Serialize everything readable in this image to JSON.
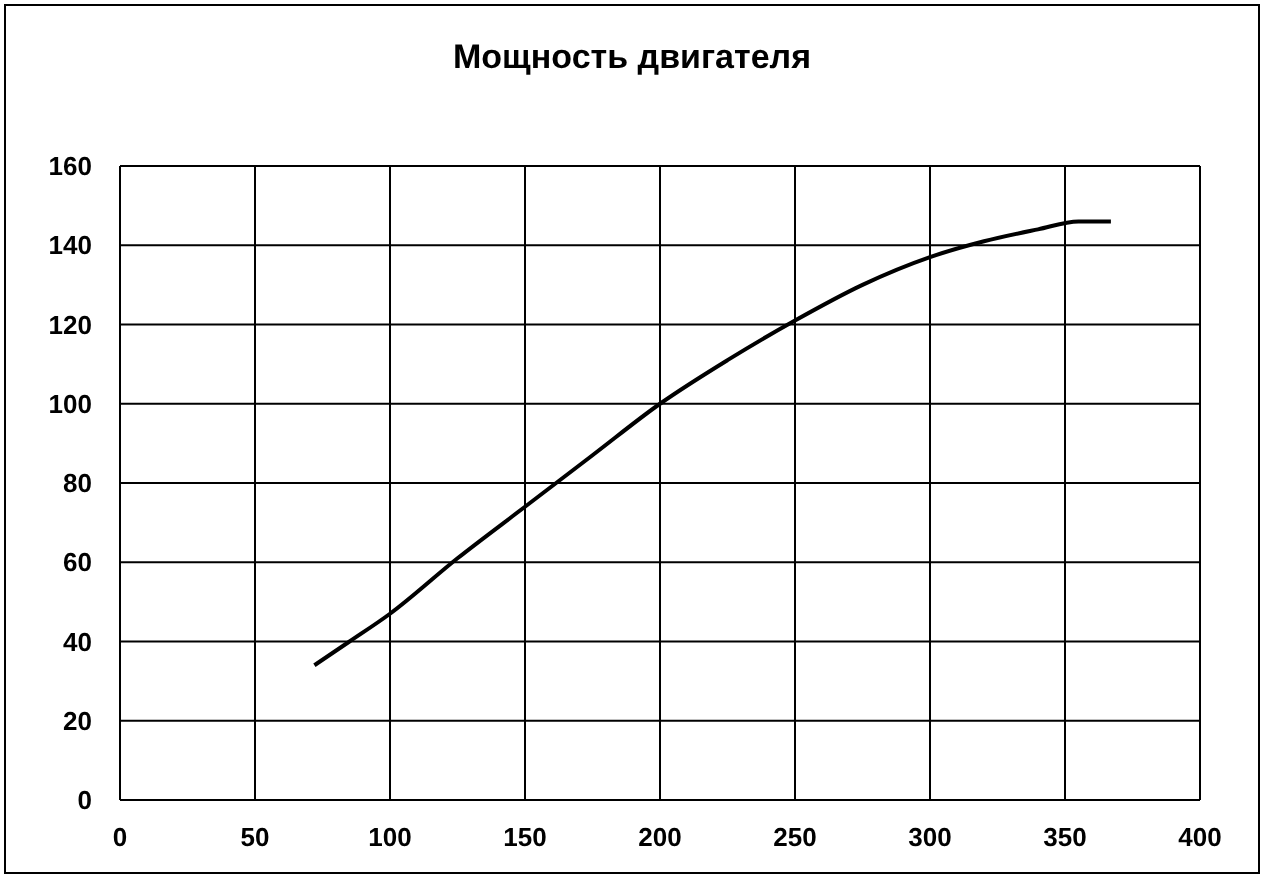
{
  "chart_data": {
    "type": "line",
    "title": "Мощность двигателя",
    "x": [
      72,
      85,
      100,
      125,
      150,
      175,
      200,
      225,
      250,
      275,
      300,
      320,
      340,
      355,
      367
    ],
    "series": [
      {
        "color": "#000000",
        "values": [
          34,
          40,
          47,
          61,
          74,
          87,
          100,
          111,
          121,
          130,
          137,
          141,
          144,
          146,
          146
        ]
      }
    ],
    "xlim": [
      0,
      400
    ],
    "xticks": [
      0,
      50,
      100,
      150,
      200,
      250,
      300,
      350,
      400
    ],
    "ylim": [
      0,
      160
    ],
    "yticks": [
      0,
      20,
      40,
      60,
      80,
      100,
      120,
      140,
      160
    ],
    "grid": true,
    "legend": false,
    "marker": "none",
    "line_style": "solid"
  }
}
